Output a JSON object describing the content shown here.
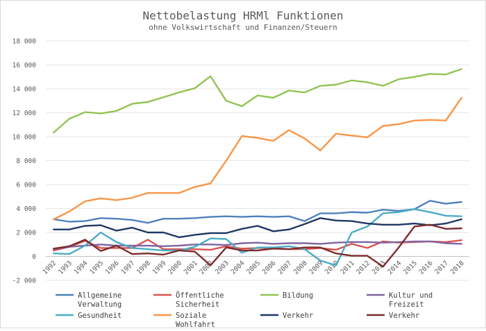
{
  "chart_data": {
    "type": "line",
    "title": "Nettobelastung HRMl Funktionen",
    "subtitle": "ohne Volkswirtschaft und Finanzen/Steuern",
    "xlabel": "",
    "ylabel": "",
    "ylim": [
      -2000,
      18000
    ],
    "yticks": [
      -2000,
      0,
      2000,
      4000,
      6000,
      8000,
      10000,
      12000,
      14000,
      16000,
      18000
    ],
    "ytick_labels": [
      "-2 000",
      "0",
      "2 000",
      "4 000",
      "6 000",
      "8 000",
      "10 000",
      "12 000",
      "14 000",
      "16 000",
      "18 000"
    ],
    "grid": "horizontal",
    "legend_position": "bottom",
    "categories": [
      "1992",
      "1993",
      "1994",
      "1995",
      "1996",
      "1997",
      "1998",
      "1999",
      "2000",
      "2001",
      "2002",
      "2003",
      "2004",
      "2005",
      "2006",
      "2007",
      "2008",
      "2009",
      "2010",
      "2011",
      "2012",
      "2013",
      "2014",
      "2015",
      "2016",
      "2017",
      "2018"
    ],
    "series": [
      {
        "name": "Allgemeine Verwaltung",
        "color": "#4f81bd",
        "values": [
          3100,
          2900,
          2950,
          3200,
          3150,
          3050,
          2800,
          3150,
          3150,
          3200,
          3300,
          3350,
          3300,
          3350,
          3300,
          3350,
          2950,
          3600,
          3600,
          3700,
          3650,
          3900,
          3800,
          3950,
          4650,
          4400,
          4550
        ]
      },
      {
        "name": "Öffentliche Sicherheit",
        "color": "#d9534f",
        "values": [
          500,
          800,
          1300,
          700,
          700,
          700,
          1400,
          600,
          600,
          600,
          550,
          850,
          650,
          700,
          700,
          600,
          600,
          700,
          550,
          1050,
          700,
          1250,
          1150,
          1200,
          1250,
          1200,
          1350
        ]
      },
      {
        "name": "Bildung",
        "color": "#92c353",
        "values": [
          10350,
          11500,
          12050,
          11950,
          12150,
          12750,
          12900,
          13300,
          13700,
          14050,
          15050,
          13000,
          12550,
          13450,
          13250,
          13850,
          13700,
          14250,
          14350,
          14700,
          14550,
          14250,
          14800,
          15000,
          15250,
          15200,
          15650
        ]
      },
      {
        "name": "Kultur und Freizeit",
        "color": "#8064a2",
        "values": [
          600,
          800,
          900,
          1000,
          900,
          900,
          900,
          850,
          900,
          1000,
          1000,
          950,
          1100,
          1150,
          1050,
          1100,
          1100,
          1050,
          1150,
          1200,
          1200,
          1150,
          1200,
          1250,
          1250,
          1100,
          1050
        ]
      },
      {
        "name": "Gesundheit",
        "color": "#4bacc6",
        "values": [
          250,
          200,
          900,
          2000,
          1200,
          700,
          600,
          500,
          500,
          800,
          1500,
          1450,
          300,
          750,
          750,
          850,
          600,
          -350,
          -750,
          2000,
          2500,
          3600,
          3700,
          3950,
          3700,
          3400,
          3350
        ]
      },
      {
        "name": "Soziale Wohlfahrt",
        "color": "#f79646",
        "values": [
          3100,
          3750,
          4600,
          4850,
          4700,
          4900,
          5300,
          5300,
          5300,
          5800,
          6100,
          8000,
          10050,
          9900,
          9650,
          10550,
          9850,
          8850,
          10250,
          10100,
          9950,
          10900,
          11050,
          11350,
          11400,
          11350,
          13250
        ]
      },
      {
        "name": "Verkehr",
        "color": "#1f3864",
        "values": [
          2250,
          2250,
          2550,
          2600,
          2150,
          2400,
          2000,
          2000,
          1600,
          1800,
          1950,
          1950,
          2300,
          2550,
          2100,
          2250,
          2700,
          3200,
          3000,
          2950,
          2750,
          2650,
          2650,
          2750,
          2600,
          2750,
          3100
        ]
      },
      {
        "name": "Verkehr",
        "color": "#7b2c2c",
        "values": [
          650,
          850,
          1400,
          450,
          900,
          200,
          250,
          150,
          500,
          400,
          -750,
          750,
          500,
          500,
          650,
          600,
          750,
          750,
          250,
          50,
          50,
          -850,
          750,
          2500,
          2650,
          2300,
          2350
        ]
      }
    ]
  }
}
